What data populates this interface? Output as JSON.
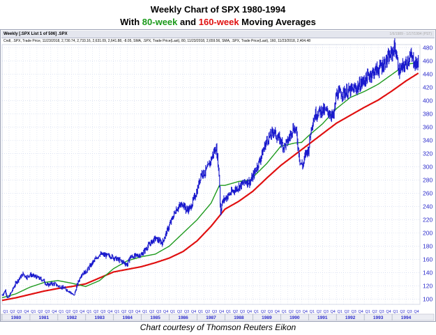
{
  "header": {
    "title_line1": "Weekly Chart of SPX 1980-1994",
    "title_line2_prefix": "With ",
    "title_line2_green": "80-week",
    "title_line2_mid": " and ",
    "title_line2_red": "160-week",
    "title_line2_suffix": " Moving Averages"
  },
  "panel": {
    "label": "Weekly [.SPX List 1 of 506] .SPX",
    "right_label": "1/6/1989 - 1/17/1994 (PST)",
    "legend": "Cndl, .SPX, Trade Price, 11/23/2018, 2,730.74, 2,733.16, 2,631.09, 2,641.88, -8.05, SMA, .SPX, Trade Price(Last), 80, 11/23/2018, 2,659.56, SMA, .SPX, Trade Price(Last), 160, 11/23/2018, 2,404.48"
  },
  "caption": "Chart courtesy of Thomson Reuters Eikon",
  "colors": {
    "price": "#1a1acd",
    "ma80": "#1e9a1e",
    "ma160": "#e01010",
    "grid": "#c8d2ea",
    "axis_text": "#2a2acb",
    "year_row_bg": "#ecedf3"
  },
  "chart_data": {
    "type": "line",
    "title": "Weekly Chart of SPX 1980-1994",
    "xlabel": "",
    "ylabel": "",
    "xlim": [
      1980.0,
      1995.0
    ],
    "ylim": [
      92,
      485
    ],
    "y_ticks": [
      100,
      120,
      140,
      160,
      180,
      200,
      220,
      240,
      260,
      280,
      300,
      320,
      340,
      360,
      380,
      400,
      420,
      440,
      460,
      480
    ],
    "years": [
      "1980",
      "1981",
      "1982",
      "1983",
      "1984",
      "1985",
      "1986",
      "1987",
      "1988",
      "1989",
      "1990",
      "1991",
      "1992",
      "1993",
      "1994"
    ],
    "quarters": [
      "Q1",
      "Q2",
      "Q3",
      "Q4"
    ],
    "grid": true,
    "series": [
      {
        "name": ".SPX Trade Price",
        "x": [
          1980.0,
          1980.12,
          1980.2,
          1980.35,
          1980.5,
          1980.75,
          1980.88,
          1981.0,
          1981.25,
          1981.5,
          1981.6,
          1981.75,
          1981.9,
          1982.0,
          1982.25,
          1982.4,
          1982.58,
          1982.7,
          1982.85,
          1983.0,
          1983.25,
          1983.5,
          1983.75,
          1983.9,
          1984.0,
          1984.25,
          1984.5,
          1984.58,
          1984.75,
          1985.0,
          1985.25,
          1985.5,
          1985.75,
          1986.0,
          1986.15,
          1986.25,
          1986.5,
          1986.6,
          1986.75,
          1987.0,
          1987.15,
          1987.25,
          1987.4,
          1987.6,
          1987.68,
          1987.74,
          1987.8,
          1987.84,
          1987.88,
          1988.0,
          1988.25,
          1988.5,
          1988.75,
          1988.9,
          1989.0,
          1989.25,
          1989.5,
          1989.65,
          1989.75,
          1989.85,
          1990.0,
          1990.1,
          1990.25,
          1990.45,
          1990.55,
          1990.7,
          1990.8,
          1990.9,
          1991.0,
          1991.05,
          1991.12,
          1991.25,
          1991.5,
          1991.75,
          1991.9,
          1992.0,
          1992.25,
          1992.5,
          1992.75,
          1993.0,
          1993.25,
          1993.5,
          1993.75,
          1994.0,
          1994.1,
          1994.25,
          1994.4,
          1994.5,
          1994.65,
          1994.75,
          1994.85,
          1994.95
        ],
        "values": [
          106,
          113,
          100,
          112,
          125,
          138,
          133,
          137,
          133,
          128,
          121,
          123,
          123,
          120,
          116,
          112,
          105,
          122,
          138,
          141,
          155,
          168,
          166,
          165,
          163,
          158,
          152,
          163,
          165,
          167,
          181,
          192,
          185,
          211,
          226,
          236,
          245,
          235,
          237,
          264,
          291,
          290,
          300,
          322,
          330,
          311,
          282,
          226,
          245,
          252,
          262,
          270,
          278,
          277,
          285,
          310,
          340,
          348,
          355,
          346,
          340,
          330,
          338,
          360,
          355,
          306,
          302,
          321,
          326,
          344,
          365,
          380,
          386,
          382,
          375,
          410,
          412,
          415,
          420,
          431,
          441,
          448,
          458,
          472,
          482,
          444,
          451,
          456,
          468,
          462,
          455,
          459
        ]
      },
      {
        "name": "SMA 80",
        "x": [
          1980.0,
          1980.5,
          1981.0,
          1981.5,
          1982.0,
          1982.5,
          1983.0,
          1983.5,
          1984.0,
          1984.5,
          1985.0,
          1985.5,
          1986.0,
          1986.5,
          1987.0,
          1987.5,
          1987.8,
          1988.0,
          1988.5,
          1988.9,
          1989.5,
          1990.0,
          1990.5,
          1990.75,
          1991.0,
          1991.5,
          1992.0,
          1992.5,
          1993.0,
          1993.5,
          1994.0,
          1994.5,
          1994.95
        ],
        "values": [
          102,
          108,
          118,
          125,
          128,
          124,
          119,
          128,
          146,
          158,
          164,
          168,
          180,
          200,
          220,
          245,
          272,
          272,
          278,
          280,
          305,
          331,
          336,
          337,
          347,
          365,
          388,
          405,
          414,
          425,
          440,
          455,
          458
        ]
      },
      {
        "name": "SMA 160",
        "x": [
          1980.0,
          1980.5,
          1981.0,
          1981.5,
          1982.0,
          1982.5,
          1983.0,
          1983.5,
          1984.0,
          1984.5,
          1985.0,
          1985.5,
          1986.0,
          1986.5,
          1987.0,
          1987.5,
          1988.0,
          1988.5,
          1989.0,
          1989.5,
          1990.0,
          1990.5,
          1991.0,
          1991.5,
          1992.0,
          1992.5,
          1993.0,
          1993.5,
          1994.0,
          1994.5,
          1994.95
        ],
        "values": [
          98,
          102,
          107,
          112,
          116,
          119,
          123,
          132,
          141,
          145,
          149,
          155,
          162,
          172,
          188,
          210,
          236,
          248,
          263,
          283,
          302,
          318,
          334,
          350,
          366,
          378,
          390,
          401,
          415,
          430,
          442
        ]
      }
    ]
  }
}
